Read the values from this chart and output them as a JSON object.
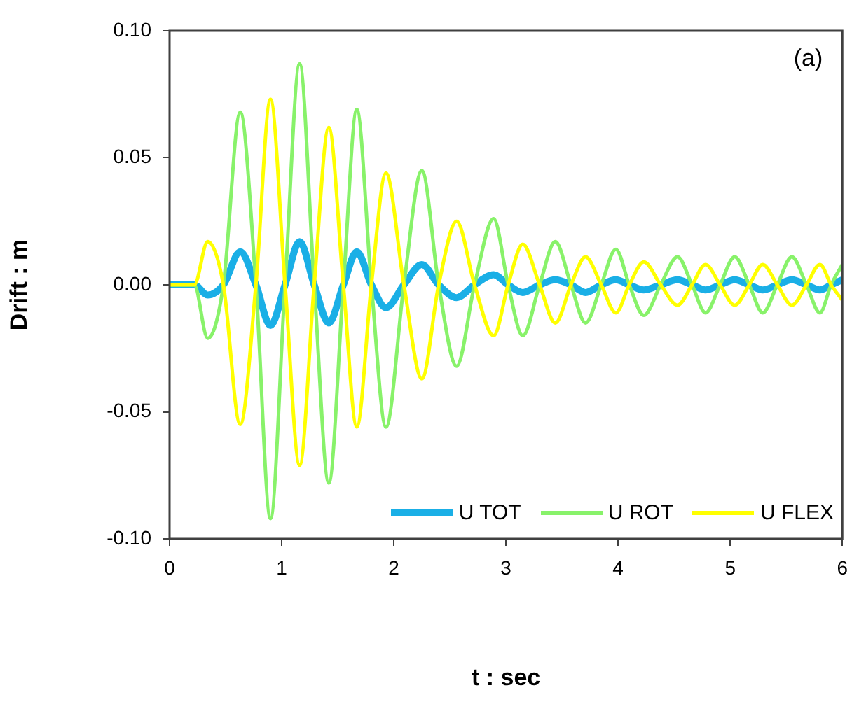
{
  "chart_data": {
    "type": "line",
    "xlabel": "t : sec",
    "ylabel": "Drift : m",
    "annotations": [
      "(a)"
    ],
    "legend": "bottom",
    "marker": "none",
    "x": [
      0,
      0.1,
      0.22,
      0.34,
      0.48,
      0.63,
      0.77,
      0.9,
      1.03,
      1.16,
      1.29,
      1.42,
      1.55,
      1.67,
      1.8,
      1.93,
      2.09,
      2.25,
      2.4,
      2.56,
      2.72,
      2.89,
      3.02,
      3.15,
      3.3,
      3.44,
      3.58,
      3.71,
      3.85,
      3.98,
      4.1,
      4.23,
      4.38,
      4.53,
      4.66,
      4.78,
      4.91,
      5.04,
      5.17,
      5.29,
      5.42,
      5.55,
      5.68,
      5.8,
      5.9,
      6
    ],
    "series": [
      {
        "name": "U TOT",
        "color": "#1aafe6",
        "values": [
          0,
          0,
          0,
          -0.004,
          0,
          0.013,
          0,
          -0.016,
          0,
          0.017,
          0,
          -0.015,
          0,
          0.013,
          0,
          -0.009,
          0,
          0.008,
          0,
          -0.005,
          0,
          0.004,
          0,
          -0.003,
          0,
          0.002,
          0,
          -0.003,
          0,
          0.002,
          0,
          -0.002,
          0,
          0.002,
          0,
          -0.002,
          0,
          0.002,
          0,
          -0.002,
          0,
          0.002,
          0,
          -0.002,
          0,
          0.002
        ]
      },
      {
        "name": "U ROT",
        "color": "#88f26a",
        "values": [
          0,
          0,
          0,
          -0.021,
          0,
          0.068,
          0,
          -0.092,
          0,
          0.087,
          0,
          -0.078,
          0,
          0.069,
          0,
          -0.056,
          0,
          0.045,
          0,
          -0.032,
          0,
          0.026,
          0,
          -0.02,
          0,
          0.017,
          0,
          -0.015,
          0,
          0.014,
          0,
          -0.012,
          0,
          0.011,
          0,
          -0.011,
          0,
          0.011,
          0,
          -0.011,
          0,
          0.011,
          0,
          -0.011,
          0,
          0.008
        ]
      },
      {
        "name": "U FLEX",
        "color": "#ffff00",
        "values": [
          0,
          0,
          0,
          0.017,
          0,
          -0.055,
          0,
          0.073,
          0,
          -0.071,
          0,
          0.062,
          0,
          -0.056,
          0,
          0.044,
          0,
          -0.037,
          0,
          0.025,
          0,
          -0.02,
          0,
          0.016,
          0,
          -0.015,
          0,
          0.011,
          0,
          -0.011,
          0,
          0.009,
          0,
          -0.008,
          0,
          0.008,
          0,
          -0.008,
          0,
          0.008,
          0,
          -0.008,
          0,
          0.008,
          0,
          -0.006
        ]
      }
    ],
    "xlim": [
      0,
      6
    ],
    "xticks": [
      0,
      1,
      2,
      3,
      4,
      5,
      6
    ],
    "ylim": [
      -0.1,
      0.1
    ],
    "yticks": [
      {
        "value": -0.1,
        "label": "-0.10"
      },
      {
        "value": -0.05,
        "label": "-0.05"
      },
      {
        "value": 0,
        "label": "0.00"
      },
      {
        "value": 0.05,
        "label": "0.05"
      },
      {
        "value": 0.1,
        "label": "0.10"
      }
    ]
  }
}
